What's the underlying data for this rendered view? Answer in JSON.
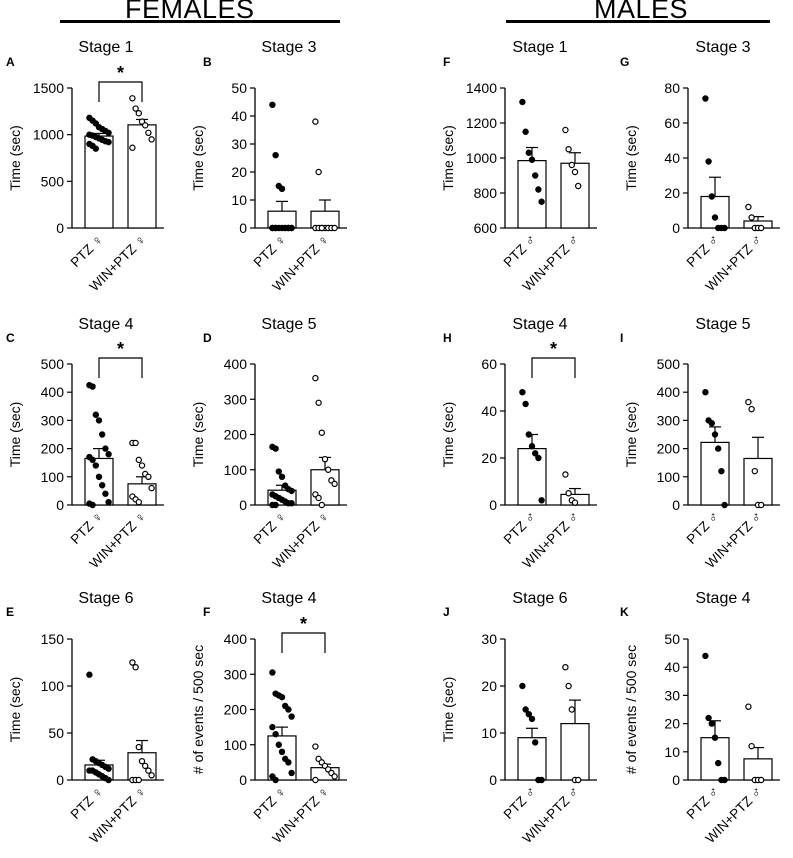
{
  "header": {
    "left_title": "FEMALES",
    "right_title": "MALES"
  },
  "chart_data": [
    {
      "id": "A",
      "group": "females",
      "type": "bar",
      "title": "Stage 1",
      "ylabel": "Time (sec)",
      "ylim": [
        0,
        1500
      ],
      "yticks": [
        0,
        500,
        1000,
        1500
      ],
      "categories": [
        "PTZ ♀",
        "WIN+PTZ ♀"
      ],
      "means": [
        985,
        1105
      ],
      "sem": [
        28,
        58
      ],
      "significance": "*",
      "points": [
        [
          1180,
          1150,
          1120,
          1080,
          1060,
          1040,
          1020,
          1000,
          990,
          975,
          960,
          945,
          930,
          920,
          900,
          880,
          850
        ],
        [
          1390,
          1280,
          1230,
          1140,
          1100,
          1020,
          950,
          860
        ]
      ]
    },
    {
      "id": "B",
      "group": "females",
      "type": "bar",
      "title": "Stage 3",
      "ylabel": "Time (sec)",
      "ylim": [
        0,
        50
      ],
      "yticks": [
        0,
        10,
        20,
        30,
        40,
        50
      ],
      "categories": [
        "PTZ ♀",
        "WIN+PTZ ♀"
      ],
      "means": [
        6,
        6
      ],
      "sem": [
        3.5,
        4
      ],
      "significance": "",
      "points": [
        [
          44,
          26,
          15,
          14,
          0,
          0,
          0,
          0,
          0,
          0,
          0,
          0,
          0,
          0,
          0,
          0
        ],
        [
          38,
          20,
          0,
          0,
          0,
          0,
          0,
          0,
          0,
          0
        ]
      ]
    },
    {
      "id": "F",
      "group": "males",
      "type": "bar",
      "title": "Stage 1",
      "ylabel": "Time (sec)",
      "ylim": [
        600,
        1400
      ],
      "yticks": [
        600,
        800,
        1000,
        1200,
        1400
      ],
      "categories": [
        "PTZ ♂",
        "WIN+PTZ ♂"
      ],
      "means": [
        985,
        970
      ],
      "sem": [
        75,
        60
      ],
      "significance": "",
      "points": [
        [
          1320,
          1150,
          1030,
          990,
          900,
          820,
          750
        ],
        [
          1160,
          1050,
          960,
          920,
          840
        ]
      ]
    },
    {
      "id": "G",
      "group": "males",
      "type": "bar",
      "title": "Stage 3",
      "ylabel": "Time (sec)",
      "ylim": [
        0,
        80
      ],
      "yticks": [
        0,
        20,
        40,
        60,
        80
      ],
      "categories": [
        "PTZ ♂",
        "WIN+PTZ ♂"
      ],
      "means": [
        18,
        4
      ],
      "sem": [
        11,
        2.5
      ],
      "significance": "",
      "points": [
        [
          74,
          38,
          18,
          6,
          0,
          0,
          0
        ],
        [
          12,
          6,
          0,
          0,
          0
        ]
      ]
    },
    {
      "id": "C",
      "group": "females",
      "type": "bar",
      "title": "Stage 4",
      "ylabel": "Time (sec)",
      "ylim": [
        0,
        500
      ],
      "yticks": [
        0,
        100,
        200,
        300,
        400,
        500
      ],
      "categories": [
        "PTZ ♀",
        "WIN+PTZ ♀"
      ],
      "means": [
        165,
        75
      ],
      "sem": [
        35,
        25
      ],
      "significance": "*",
      "points": [
        [
          425,
          420,
          320,
          300,
          250,
          200,
          180,
          170,
          160,
          140,
          100,
          70,
          40,
          10,
          5,
          0
        ],
        [
          220,
          220,
          160,
          140,
          110,
          100,
          60,
          30,
          20,
          10
        ]
      ]
    },
    {
      "id": "D",
      "group": "females",
      "type": "bar",
      "title": "Stage 5",
      "ylabel": "Time (sec)",
      "ylim": [
        0,
        400
      ],
      "yticks": [
        0,
        100,
        200,
        300,
        400
      ],
      "categories": [
        "PTZ ♀",
        "WIN+PTZ ♀"
      ],
      "means": [
        42,
        100
      ],
      "sem": [
        14,
        35
      ],
      "significance": "",
      "points": [
        [
          165,
          160,
          95,
          80,
          55,
          45,
          40,
          30,
          25,
          20,
          15,
          10,
          5,
          5,
          0,
          0
        ],
        [
          360,
          290,
          205,
          130,
          100,
          70,
          60,
          30,
          20,
          0
        ]
      ]
    },
    {
      "id": "H",
      "group": "males",
      "type": "bar",
      "title": "Stage 4",
      "ylabel": "Time (sec)",
      "ylim": [
        0,
        60
      ],
      "yticks": [
        0,
        20,
        40,
        60
      ],
      "categories": [
        "PTZ ♂",
        "WIN+PTZ ♂"
      ],
      "means": [
        24,
        4.5
      ],
      "sem": [
        6,
        2.5
      ],
      "significance": "*",
      "points": [
        [
          48,
          43,
          30,
          25,
          22,
          20,
          2
        ],
        [
          13,
          5,
          2,
          1
        ]
      ]
    },
    {
      "id": "I",
      "group": "males",
      "type": "bar",
      "title": "Stage 5",
      "ylabel": "Time (sec)",
      "ylim": [
        0,
        500
      ],
      "yticks": [
        0,
        100,
        200,
        300,
        400,
        500
      ],
      "categories": [
        "PTZ ♂",
        "WIN+PTZ ♂"
      ],
      "means": [
        222,
        165
      ],
      "sem": [
        55,
        75
      ],
      "significance": "",
      "points": [
        [
          400,
          300,
          290,
          250,
          200,
          120,
          0
        ],
        [
          365,
          340,
          120,
          0,
          0
        ]
      ]
    },
    {
      "id": "E",
      "group": "females",
      "type": "bar",
      "title": "Stage 6",
      "ylabel": "Time (sec)",
      "ylim": [
        0,
        150
      ],
      "yticks": [
        0,
        50,
        100,
        150
      ],
      "categories": [
        "PTZ ♀",
        "WIN+PTZ ♀"
      ],
      "means": [
        16,
        29
      ],
      "sem": [
        5,
        13
      ],
      "significance": "",
      "points": [
        [
          112,
          22,
          20,
          18,
          16,
          14,
          12,
          10,
          10,
          8,
          6,
          4,
          2,
          0
        ],
        [
          125,
          120,
          35,
          20,
          15,
          10,
          5,
          0,
          0,
          0
        ]
      ]
    },
    {
      "id": "F",
      "group": "females",
      "type": "bar",
      "title": "Stage 4",
      "ylabel": "# of events / 500 sec",
      "ylim": [
        0,
        400
      ],
      "yticks": [
        0,
        100,
        200,
        300,
        400
      ],
      "categories": [
        "PTZ ♀",
        "WIN+PTZ ♀"
      ],
      "means": [
        125,
        35
      ],
      "sem": [
        25,
        10
      ],
      "significance": "*",
      "points": [
        [
          305,
          245,
          240,
          235,
          210,
          200,
          180,
          150,
          130,
          100,
          80,
          60,
          50,
          20,
          10,
          0
        ],
        [
          95,
          60,
          50,
          40,
          30,
          20,
          10,
          0
        ]
      ]
    },
    {
      "id": "J",
      "group": "males",
      "type": "bar",
      "title": "Stage 6",
      "ylabel": "Time (sec)",
      "ylim": [
        0,
        30
      ],
      "yticks": [
        0,
        10,
        20,
        30
      ],
      "categories": [
        "PTZ ♂",
        "WIN+PTZ ♂"
      ],
      "means": [
        9,
        12
      ],
      "sem": [
        2,
        5
      ],
      "significance": "",
      "points": [
        [
          20,
          15,
          14,
          13,
          8,
          0,
          0
        ],
        [
          24,
          20,
          15,
          0,
          0
        ]
      ]
    },
    {
      "id": "K",
      "group": "males",
      "type": "bar",
      "title": "Stage 4",
      "ylabel": "# of events / 500 sec",
      "ylim": [
        0,
        50
      ],
      "yticks": [
        0,
        10,
        20,
        30,
        40,
        50
      ],
      "categories": [
        "PTZ ♂",
        "WIN+PTZ ♂"
      ],
      "means": [
        15,
        7.5
      ],
      "sem": [
        6,
        4
      ],
      "significance": "",
      "points": [
        [
          44,
          22,
          20,
          15,
          6,
          0,
          0
        ],
        [
          26,
          12,
          0,
          0,
          0
        ]
      ]
    }
  ]
}
